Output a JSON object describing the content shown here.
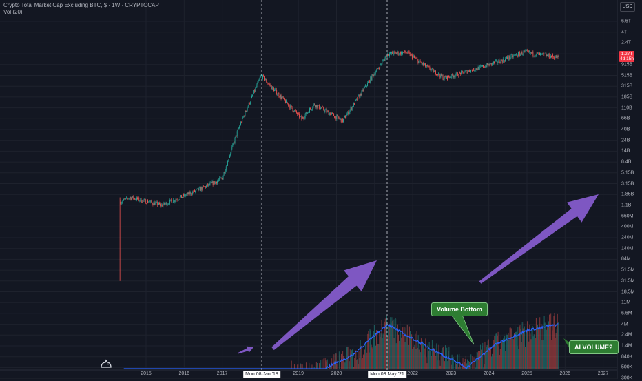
{
  "header": {
    "title": "Crypto Total Market Cap Excluding BTC, $ · 1W · CRYPTOCAP",
    "indicator": "Vol (20)"
  },
  "currency_button": "USD",
  "price_tag": {
    "value": "1.27T",
    "countdown": "4d 15h"
  },
  "y_axis_labels": [
    "6.6T",
    "4T",
    "2.4T",
    "1.5T",
    "915B",
    "515B",
    "315B",
    "185B",
    "110B",
    "66B",
    "40B",
    "24B",
    "14B",
    "8.4B",
    "5.15B",
    "3.15B",
    "1.85B",
    "1.1B",
    "660M",
    "400M",
    "240M",
    "140M",
    "84M",
    "51.5M",
    "31.5M",
    "18.5M",
    "11M",
    "6.6M",
    "4M",
    "2.4M",
    "1.4M",
    "840K",
    "500K",
    "300K"
  ],
  "x_axis_labels": [
    "2015",
    "2016",
    "2017",
    "2018",
    "2019",
    "2020",
    "2021",
    "2022",
    "2023",
    "2024",
    "2025",
    "2026",
    "2027"
  ],
  "vertical_line_labels": [
    "Mon 08 Jan '18",
    "Mon 03 May '21"
  ],
  "annotations": {
    "volume_bottom": "Volume Bottom",
    "ai_volume": "AI VOLUME?"
  },
  "colors": {
    "background": "#131722",
    "up": "#26a69a",
    "down": "#ef5350",
    "volume_ma": "#2962ff",
    "arrow": "#7e57c2",
    "callout": "#2e7d32"
  },
  "chart_data": {
    "type": "candlestick",
    "scale": "log",
    "title": "Crypto Total Market Cap Excluding BTC, $ · 1W · CRYPTOCAP",
    "price_path": [
      {
        "date": "2014-05",
        "value": "1.3B"
      },
      {
        "date": "2014-08",
        "value": "1.6B"
      },
      {
        "date": "2015-06",
        "value": "1.1B"
      },
      {
        "date": "2016-06",
        "value": "2.4B"
      },
      {
        "date": "2017-01",
        "value": "4B"
      },
      {
        "date": "2017-06",
        "value": "40B"
      },
      {
        "date": "2018-01-08",
        "value": "515B"
      },
      {
        "date": "2019-02",
        "value": "66B"
      },
      {
        "date": "2019-06",
        "value": "130B"
      },
      {
        "date": "2020-03",
        "value": "60B"
      },
      {
        "date": "2021-05-03",
        "value": "1.5T"
      },
      {
        "date": "2021-11",
        "value": "1.6T"
      },
      {
        "date": "2022-11",
        "value": "450B"
      },
      {
        "date": "2024-03",
        "value": "1.0T"
      },
      {
        "date": "2024-12",
        "value": "1.6T"
      },
      {
        "date": "2025-11",
        "value": "1.27T"
      }
    ],
    "volume_ma_path": [
      {
        "date": "2014-06",
        "value": "300K"
      },
      {
        "date": "2017-06",
        "value": "400K"
      },
      {
        "date": "2018-01",
        "value": "450K"
      },
      {
        "date": "2019-06",
        "value": "380K"
      },
      {
        "date": "2020-06",
        "value": "900K"
      },
      {
        "date": "2021-05",
        "value": "4M"
      },
      {
        "date": "2022-06",
        "value": "1.3M"
      },
      {
        "date": "2023-06",
        "value": "500K"
      },
      {
        "date": "2024-03",
        "value": "1.5M"
      },
      {
        "date": "2025-01",
        "value": "3M"
      },
      {
        "date": "2025-11",
        "value": "4M"
      }
    ],
    "vertical_markers": [
      "Mon 08 Jan '18",
      "Mon 03 May '21"
    ]
  }
}
